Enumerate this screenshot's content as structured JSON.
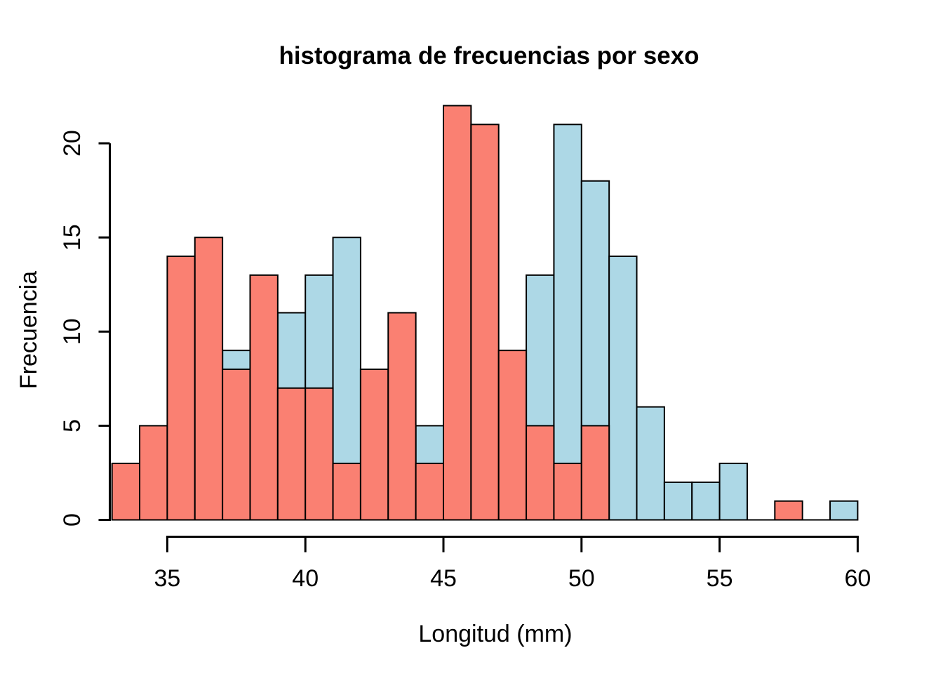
{
  "page": {
    "background": "#ffffff"
  },
  "colors": {
    "bar_red": "#FA8072",
    "bar_blue": "#ADD8E6",
    "bar_border": "#000000",
    "axis": "#000000",
    "text": "#000000"
  },
  "chart_data": {
    "type": "bar",
    "subtype": "overlaid-histogram",
    "title": "histograma de frecuencias por sexo",
    "xlabel": "Longitud (mm)",
    "ylabel": "Frecuencia",
    "grid": false,
    "legend": "none",
    "bin_start": 33,
    "bin_width": 1,
    "xlim": [
      33,
      60
    ],
    "ylim": [
      0,
      22
    ],
    "x_ticks": [
      35,
      40,
      45,
      50,
      55,
      60
    ],
    "y_ticks": [
      0,
      5,
      10,
      15,
      20
    ],
    "bin_left_edges": [
      33,
      34,
      35,
      36,
      37,
      38,
      39,
      40,
      41,
      42,
      43,
      44,
      45,
      46,
      47,
      48,
      49,
      50,
      51,
      52,
      53,
      54,
      55,
      56,
      57,
      58,
      59
    ],
    "series": [
      {
        "name": "histogram-blue",
        "color": "#ADD8E6",
        "layer": "behind",
        "values": [
          0,
          0,
          0,
          0,
          9,
          0,
          11,
          13,
          15,
          0,
          0,
          5,
          0,
          0,
          0,
          13,
          21,
          18,
          14,
          6,
          2,
          2,
          3,
          0,
          0,
          0,
          1
        ]
      },
      {
        "name": "histogram-red",
        "color": "#FA8072",
        "layer": "front",
        "values": [
          3,
          5,
          14,
          15,
          8,
          13,
          7,
          7,
          3,
          8,
          11,
          3,
          22,
          21,
          9,
          5,
          3,
          5,
          0,
          0,
          0,
          0,
          0,
          0,
          1,
          0,
          0
        ]
      }
    ]
  }
}
